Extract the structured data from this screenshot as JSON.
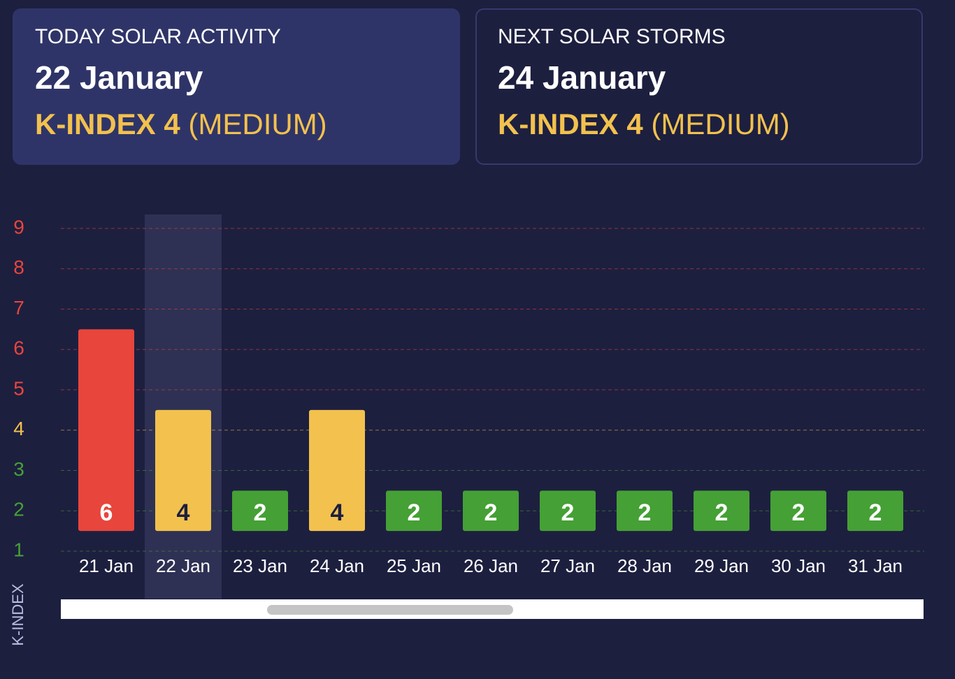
{
  "cards": [
    {
      "label": "TODAY SOLAR ACTIVITY",
      "date": "22 January",
      "kindex": "K-INDEX 4",
      "level": "(MEDIUM)"
    },
    {
      "label": "NEXT SOLAR STORMS",
      "date": "24 January",
      "kindex": "K-INDEX 4",
      "level": "(MEDIUM)"
    }
  ],
  "chart_data": {
    "type": "bar",
    "y_label": "K-INDEX",
    "categories": [
      "21 Jan",
      "22 Jan",
      "23 Jan",
      "24 Jan",
      "25 Jan",
      "26 Jan",
      "27 Jan",
      "28 Jan",
      "29 Jan",
      "30 Jan",
      "31 Jan"
    ],
    "values": [
      6,
      4,
      2,
      4,
      2,
      2,
      2,
      2,
      2,
      2,
      2
    ],
    "colors": [
      "#e8453c",
      "#f2c14e",
      "#45a035",
      "#f2c14e",
      "#45a035",
      "#45a035",
      "#45a035",
      "#45a035",
      "#45a035",
      "#45a035",
      "#45a035"
    ],
    "highlight_category": "22 Jan",
    "ylim": [
      1,
      9
    ],
    "yticks": [
      1,
      2,
      3,
      4,
      5,
      6,
      7,
      8,
      9
    ],
    "ytick_colors": [
      "#45a035",
      "#45a035",
      "#45a035",
      "#f2c14e",
      "#e8453c",
      "#e8453c",
      "#e8453c",
      "#e8453c",
      "#e8453c"
    ],
    "grid": true
  }
}
